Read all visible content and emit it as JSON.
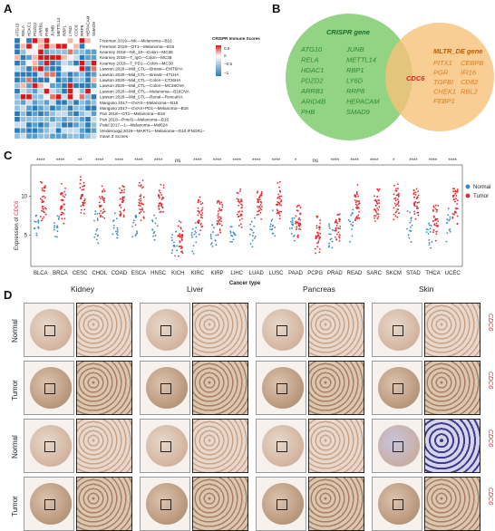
{
  "panels": {
    "a": "A",
    "b": "B",
    "c": "C",
    "d": "D"
  },
  "heatmap": {
    "genes": [
      "ATG10",
      "RELA",
      "HDAC1",
      "PDZD2",
      "ARRB1",
      "PHB",
      "JUNB",
      "METTL14",
      "RBP1",
      "LY6D",
      "CDC6",
      "RRP8",
      "HEPACAM",
      "SMAD9"
    ],
    "highlight_gene": "CDC6",
    "rows": [
      "Freeman 2019—NK—Melanoma—B16",
      "Freeman 2019—OT1—Melanoma—B16",
      "Kearney 2018—NK_10—Colon—MC38",
      "Kearney 2018—T_IgG—Colon—MC38",
      "Kearney 2018—T_PD1—Colon—MC38",
      "Lawson 2020—Mid_CTL—Breast—EMT6HA",
      "Lawson 2020—Mid_CTL—Breast—4T1HA",
      "Lawson 2020—Mid_CTL—Colon—CT26HA",
      "Lawson 2020—Mid_CTL—Colon—MC38OVA",
      "Lawson 2020—Mid_CTL—Melanoma—B16OVA",
      "Lawson 2020—Mid_CTL—Renal—RencaHA",
      "Manguso 2017—GVAX—Melanoma—B16",
      "Manguso 2017—GVAX+PD1—Melanoma—B16",
      "Pan 2018—OT1—Melanoma—B16",
      "Pan 2018—Pmel1—Melanoma—B16",
      "Patel 2017—1—Melanoma—Mel624",
      "Vredevoogd 2019—MART1—Melanoma—D10 IFNGR1−",
      "mean Z Scores"
    ],
    "legend_title": "CRISPR Immune Scores",
    "legend_ticks": [
      "0.5",
      "0",
      "−0.5",
      "−1"
    ]
  },
  "venn": {
    "left_title": "CRISPR gene",
    "left_col1": [
      "ATG10",
      "RELA",
      "HDAC1",
      "PDZD2",
      "ARRB1",
      "ARID4B",
      "PHB"
    ],
    "left_col2": [
      "JUNB",
      "METTL14",
      "RBP1",
      "LY6D",
      "RRP8",
      "HEPACAM",
      "SMAD9"
    ],
    "center": "CDC6",
    "right_title": "MLTR_DE gene",
    "right_col1": [
      "PITX1",
      "PGR",
      "TGFBI",
      "CHEK1",
      "FEBP1"
    ],
    "right_col2": [
      "CEBPB",
      "IFI16",
      "CD82",
      "RBL2"
    ],
    "colors": {
      "left": "#6cc46a",
      "right": "#f6bf74",
      "center": "#e01e25"
    }
  },
  "chart_data": {
    "type": "scatter",
    "title": "",
    "xlabel": "Cancer type",
    "ylabel": "Expression of CDC6",
    "ylim": [
      1,
      14
    ],
    "yticks": [
      5,
      10
    ],
    "categories": [
      "BLCA",
      "BRCA",
      "CESC",
      "CHOL",
      "COAD",
      "ESCA",
      "HNSC",
      "KICH",
      "KIRC",
      "KIRP",
      "LIHC",
      "LUAD",
      "LUSC",
      "PAAD",
      "PCPG",
      "PRAD",
      "READ",
      "SARC",
      "SKCM",
      "STAD",
      "THCA",
      "UCEC"
    ],
    "significance": [
      "****",
      "****",
      "**",
      "****",
      "****",
      "****",
      "****",
      "ns",
      "****",
      "****",
      "****",
      "****",
      "****",
      "*",
      "ns",
      "****",
      "****",
      "****",
      "*",
      "****",
      "****",
      "****"
    ],
    "legend": [
      {
        "name": "Normal",
        "color": "#3a87c4"
      },
      {
        "name": "Tumor",
        "color": "#e3282e"
      }
    ],
    "series": [
      {
        "name": "Normal",
        "values": [
          6.5,
          6.5,
          null,
          6,
          6,
          6.5,
          6,
          4,
          4.5,
          5,
          5,
          5.5,
          6,
          6,
          null,
          5,
          6,
          null,
          null,
          6,
          5,
          6.5
        ]
      },
      {
        "name": "Tumor",
        "values": [
          9.5,
          9,
          10,
          9,
          9.5,
          9.5,
          9.5,
          4.5,
          7.5,
          7.5,
          8.5,
          9,
          9.5,
          7,
          5,
          6,
          9,
          9,
          9.5,
          9.5,
          6.5,
          9
        ]
      }
    ],
    "legend_placement": "top-right"
  },
  "ihc": {
    "tissues": [
      "Kidney",
      "Liver",
      "Pancreas",
      "Skin"
    ],
    "rows": [
      "Normal",
      "Tumor",
      "Normal",
      "Tumor"
    ],
    "gene": "CDC6"
  }
}
